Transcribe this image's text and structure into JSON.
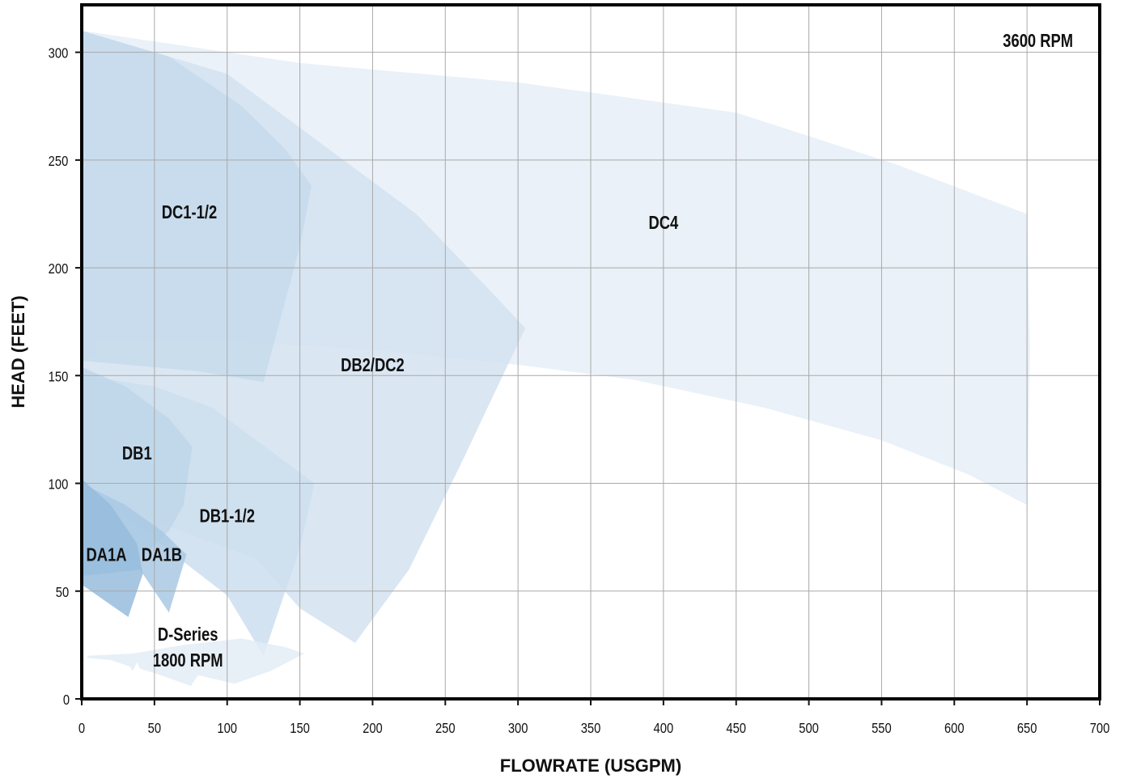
{
  "chart_data": {
    "type": "area",
    "title": "",
    "annotation": "3600 RPM",
    "xlabel": "FLOWRATE (USGPM)",
    "ylabel": "HEAD (FEET)",
    "xlim": [
      0,
      700
    ],
    "ylim": [
      0,
      322
    ],
    "x_ticks": [
      0,
      50,
      100,
      150,
      200,
      250,
      300,
      350,
      400,
      450,
      500,
      550,
      600,
      650,
      700
    ],
    "y_ticks": [
      0,
      50,
      100,
      150,
      200,
      250,
      300
    ],
    "grid": true,
    "legend": "none",
    "series": [
      {
        "name": "DC4",
        "color": "#e6eef7",
        "label_at": [
          400,
          218
        ],
        "boundary": [
          [
            0,
            310
          ],
          [
            150,
            295
          ],
          [
            300,
            286
          ],
          [
            450,
            272
          ],
          [
            560,
            248
          ],
          [
            650,
            225
          ],
          [
            652,
            160
          ],
          [
            650,
            90
          ],
          [
            610,
            104
          ],
          [
            550,
            120
          ],
          [
            470,
            135
          ],
          [
            380,
            148
          ],
          [
            300,
            155
          ],
          [
            200,
            162
          ],
          [
            100,
            166
          ],
          [
            10,
            166
          ],
          [
            10,
            160
          ],
          [
            0,
            155
          ]
        ]
      },
      {
        "name": "DB2/DC2",
        "color": "#d3e2f0",
        "label_at": [
          200,
          152
        ],
        "boundary": [
          [
            0,
            310
          ],
          [
            100,
            290
          ],
          [
            160,
            260
          ],
          [
            230,
            225
          ],
          [
            280,
            190
          ],
          [
            305,
            172
          ],
          [
            260,
            108
          ],
          [
            225,
            60
          ],
          [
            188,
            26
          ],
          [
            150,
            42
          ],
          [
            120,
            65
          ],
          [
            0,
            95
          ]
        ]
      },
      {
        "name": "DC1-1/2",
        "color": "#c6dbec",
        "label_at": [
          74,
          223
        ],
        "boundary": [
          [
            0,
            310
          ],
          [
            60,
            298
          ],
          [
            110,
            275
          ],
          [
            140,
            255
          ],
          [
            158,
            238
          ],
          [
            150,
            210
          ],
          [
            125,
            147
          ],
          [
            80,
            152
          ],
          [
            0,
            157
          ]
        ]
      },
      {
        "name": "DB1-1/2",
        "color": "#ccdeee",
        "label_at": [
          100,
          82
        ],
        "boundary": [
          [
            0,
            150
          ],
          [
            50,
            145
          ],
          [
            90,
            135
          ],
          [
            130,
            115
          ],
          [
            160,
            100
          ],
          [
            150,
            70
          ],
          [
            125,
            20
          ],
          [
            100,
            48
          ],
          [
            0,
            100
          ]
        ]
      },
      {
        "name": "DB1",
        "color": "#bed6ea",
        "label_at": [
          38,
          111
        ],
        "boundary": [
          [
            0,
            154
          ],
          [
            30,
            145
          ],
          [
            60,
            130
          ],
          [
            76,
            117
          ],
          [
            70,
            90
          ],
          [
            60,
            78
          ],
          [
            40,
            65
          ],
          [
            0,
            63
          ]
        ]
      },
      {
        "name": "DA1B",
        "color": "#a9c9e3",
        "label_at": [
          55,
          64
        ],
        "boundary": [
          [
            0,
            100
          ],
          [
            30,
            90
          ],
          [
            55,
            78
          ],
          [
            72,
            67
          ],
          [
            60,
            40
          ],
          [
            45,
            55
          ],
          [
            40,
            60
          ],
          [
            0,
            57
          ]
        ]
      },
      {
        "name": "DA1A",
        "color": "#96bcdd",
        "label_at": [
          17,
          64
        ],
        "boundary": [
          [
            0,
            102
          ],
          [
            20,
            90
          ],
          [
            38,
            72
          ],
          [
            42,
            58
          ],
          [
            32,
            38
          ],
          [
            0,
            53
          ]
        ]
      },
      {
        "name": "D-Series 1800 RPM",
        "color": "#e3ecf6",
        "label_at": [
          73,
          27
        ],
        "label_lines": [
          "D-Series",
          "1800 RPM"
        ],
        "boundary": [
          [
            4,
            20
          ],
          [
            35,
            21
          ],
          [
            70,
            25
          ],
          [
            110,
            28
          ],
          [
            140,
            24
          ],
          [
            153,
            21
          ],
          [
            130,
            13
          ],
          [
            105,
            7
          ],
          [
            80,
            11
          ],
          [
            75,
            6
          ],
          [
            50,
            12
          ],
          [
            40,
            14
          ],
          [
            38,
            17
          ],
          [
            35,
            13
          ],
          [
            33,
            15
          ],
          [
            20,
            18
          ],
          [
            4,
            19
          ]
        ]
      }
    ]
  }
}
